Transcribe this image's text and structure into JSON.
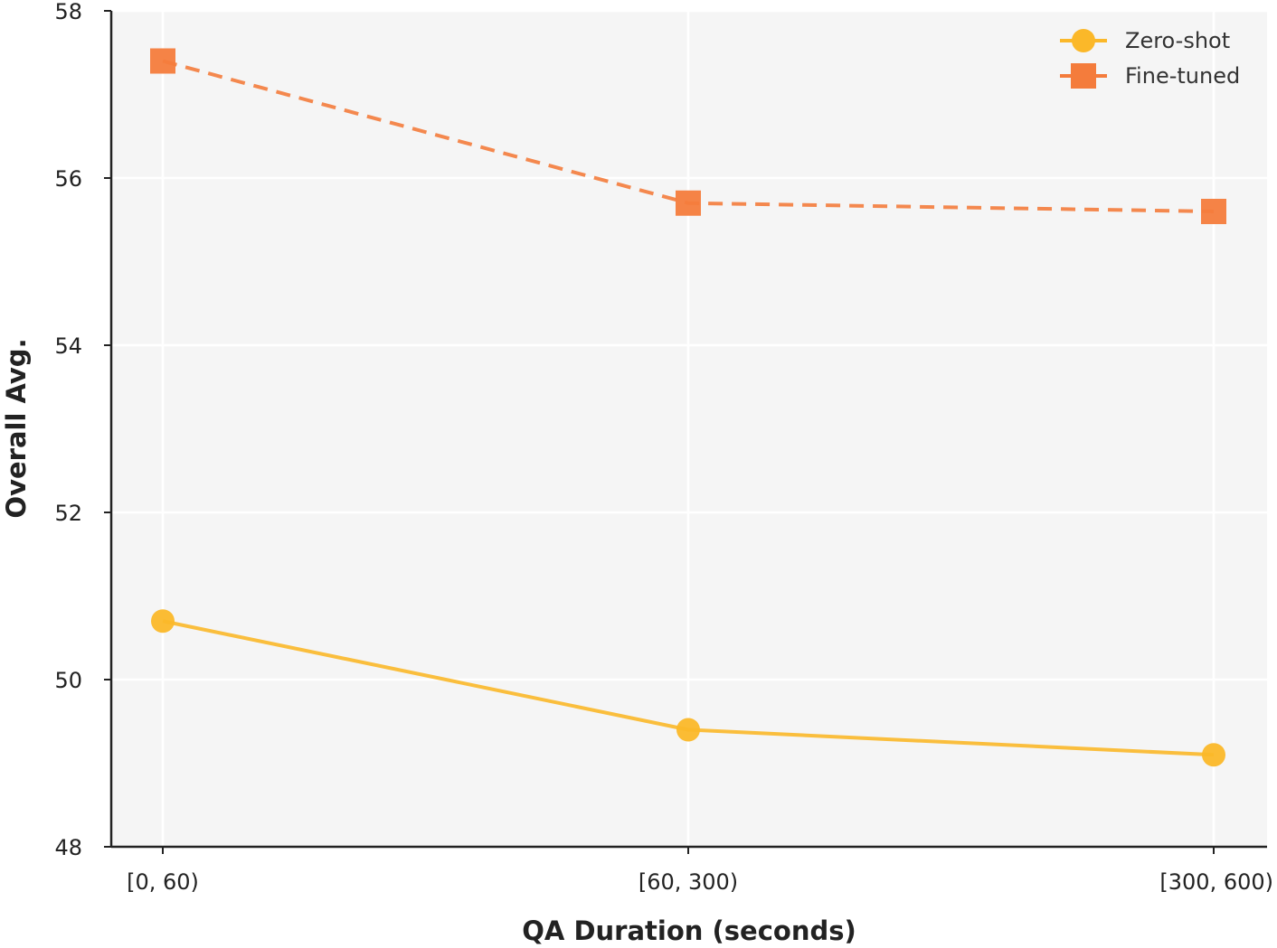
{
  "chart_data": {
    "type": "line",
    "title": "",
    "xlabel": "QA Duration (seconds)",
    "ylabel": "Overall Avg.",
    "categories": [
      "[0, 60)",
      "[60, 300)",
      "[300, 600)"
    ],
    "ylim": [
      48,
      58
    ],
    "yticks": [
      "48",
      "50",
      "52",
      "54",
      "56",
      "58"
    ],
    "grid": true,
    "legend_position": "top-right",
    "series": [
      {
        "name": "Zero-shot",
        "values": [
          50.7,
          49.4,
          49.1
        ],
        "color": "#FBB829",
        "line_style": "solid",
        "marker": "circle"
      },
      {
        "name": "Fine-tuned",
        "values": [
          57.4,
          55.7,
          55.6
        ],
        "color": "#F47C3C",
        "line_style": "dashed",
        "marker": "square"
      }
    ]
  }
}
